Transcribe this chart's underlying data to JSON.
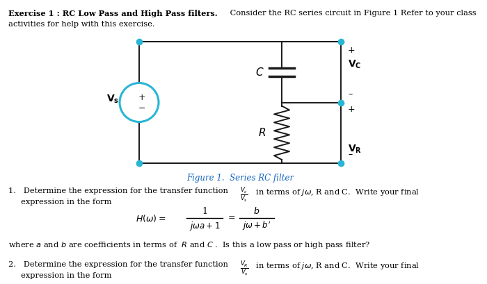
{
  "background_color": "#ffffff",
  "node_color": "#29b6d4",
  "wire_color": "#1a1a1a",
  "fig_caption_color": "#1565c0",
  "title_bold": "Exercise 1 : RC Low Pass and High Pass filters.",
  "title_rest": " Consider the RC series circuit in Figure 1 Refer to your class",
  "title_line2": "activities for help with this exercise.",
  "figure_caption": "Figure 1.  Series RC filter",
  "item1_line1a": "1.   Determine the expression for the transfer function ",
  "item1_line1b": " in terms of ",
  "item1_line1c": ", R and C.  Write your final",
  "item1_line2": "     expression in the form",
  "item1_where": "where ",
  "item1_where2": " and ",
  "item1_where3": " are coefficients in terms of  ",
  "item1_where4": " and ",
  "item1_where5": " .  Is this a low pass or high pass filter?",
  "item2_line1a": "2.   Determine the expression for the transfer function ",
  "item2_line1b": " in terms of ",
  "item2_line1c": ", R and C.  Write your final",
  "item2_line2": "     expression in the form"
}
